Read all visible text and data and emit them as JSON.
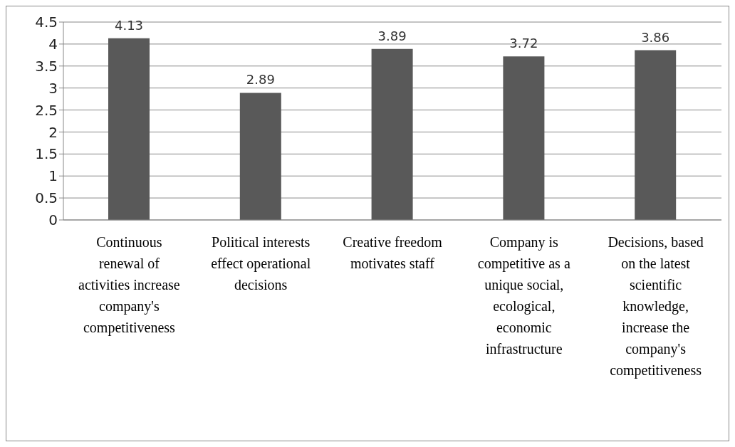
{
  "chart_data": {
    "type": "bar",
    "categories": [
      "Continuous renewal of activities increase company's competitiveness",
      "Political interests effect operational decisions",
      "Creative freedom motivates staff",
      "Company is competitive as a unique social, ecological, economic infrastructure",
      "Decisions, based on the latest scientific knowledge, increase the company's competitiveness"
    ],
    "values": [
      4.13,
      2.89,
      3.89,
      3.72,
      3.86
    ],
    "color": "#595959",
    "ylim": [
      0,
      4.5
    ],
    "yticks": [
      0,
      0.5,
      1,
      1.5,
      2,
      2.5,
      3,
      3.5,
      4,
      4.5
    ],
    "grid": "y",
    "data_labels": true
  }
}
